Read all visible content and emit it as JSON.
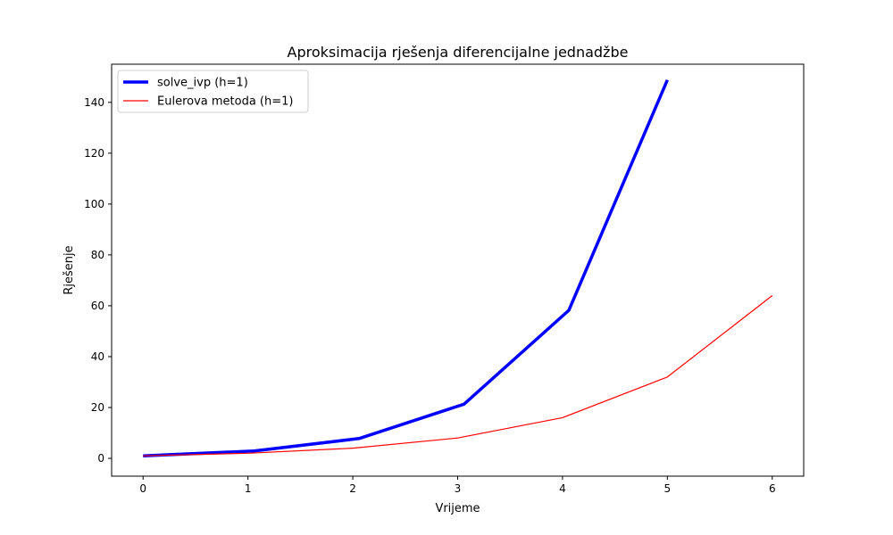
{
  "chart_data": {
    "type": "line",
    "title": "Aproksimacija rješenja diferencijalne jednadžbe",
    "xlabel": "Vrijeme",
    "ylabel": "Rješenje",
    "xlim": [
      -0.3,
      6.3
    ],
    "ylim": [
      -7,
      155
    ],
    "xticks": [
      0,
      1,
      2,
      3,
      4,
      5,
      6
    ],
    "yticks": [
      0,
      20,
      40,
      60,
      80,
      100,
      120,
      140
    ],
    "grid": false,
    "legend_position": "top-left",
    "series": [
      {
        "name": "solve_ivp (h=1)",
        "color": "#0000ff",
        "line_width": "thick",
        "x": [
          0,
          1.06,
          2.06,
          3.06,
          4.06,
          5
        ],
        "y": [
          1,
          2.9,
          7.8,
          21.3,
          58.2,
          148.8
        ]
      },
      {
        "name": "Eulerova metoda (h=1)",
        "color": "#ff0000",
        "line_width": "thin",
        "x": [
          0,
          1,
          2,
          3,
          4,
          5,
          6
        ],
        "y": [
          1,
          2,
          4,
          8,
          16,
          32,
          64
        ]
      }
    ]
  }
}
